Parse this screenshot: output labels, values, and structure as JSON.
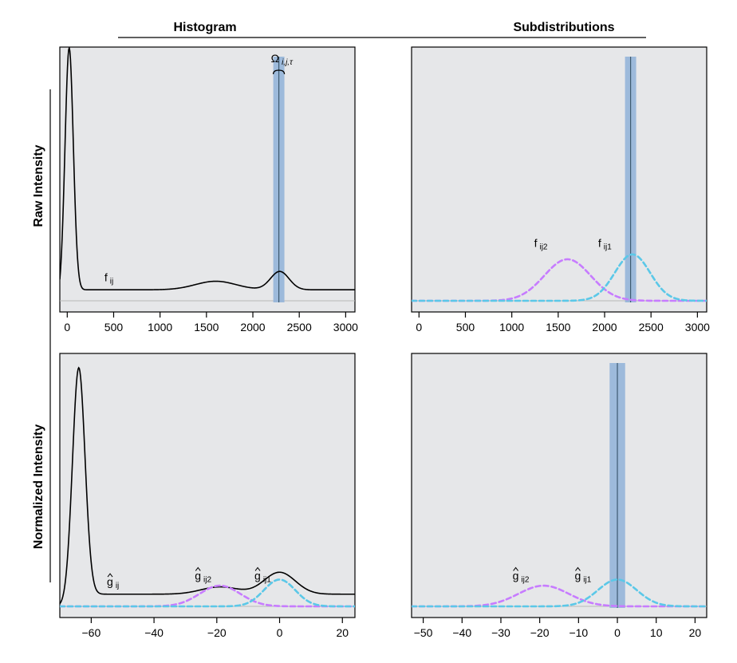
{
  "titles": {
    "col_left": "Histogram",
    "col_right": "Subdistributions",
    "row_top": "Raw Intensity",
    "row_bottom": "Normalized Intensity"
  },
  "colors": {
    "panel_bg": "#e6e7e9",
    "black_curve": "#000000",
    "purple_dash": "#c77cff",
    "cyan_dash": "#5bc8e8",
    "window_band": "#8fb1d8",
    "window_line": "#3e5a70"
  },
  "chart_data": [
    {
      "id": "raw-histogram",
      "type": "line",
      "xlim": [
        -80,
        3100
      ],
      "ylim": [
        0,
        1
      ],
      "x_ticks": [
        0,
        500,
        1000,
        1500,
        2000,
        2500,
        3000
      ],
      "x_tick_labels": [
        "0",
        "500",
        "1000",
        "1500",
        "2000",
        "2500",
        "3000"
      ],
      "window": {
        "from": 2220,
        "to": 2340,
        "center": 2280
      },
      "window_label": {
        "main": "Ω",
        "sub": "i,j,τ"
      },
      "labels": [
        {
          "main": "f",
          "sub": "ij",
          "x": 400,
          "y": 0.08,
          "hat": false
        }
      ],
      "series": [
        {
          "style": "solid",
          "color": "#000000",
          "components": [
            {
              "mu": 20,
              "sd": 45,
              "amp": 1.0
            },
            {
              "mu": 1600,
              "sd": 220,
              "amp": 0.035
            },
            {
              "mu": 2290,
              "sd": 100,
              "amp": 0.075
            }
          ],
          "base": {
            "level": 0.045,
            "from": 60,
            "to": 3200,
            "decay_sd": 60
          }
        }
      ]
    },
    {
      "id": "raw-subdistributions",
      "type": "line",
      "xlim": [
        -80,
        3100
      ],
      "ylim": [
        0,
        1
      ],
      "x_ticks": [
        0,
        500,
        1000,
        1500,
        2000,
        2500,
        3000
      ],
      "x_tick_labels": [
        "0",
        "500",
        "1000",
        "1500",
        "2000",
        "2500",
        "3000"
      ],
      "window": {
        "from": 2220,
        "to": 2340,
        "center": 2280
      },
      "labels": [
        {
          "main": "f",
          "sub": "ij2",
          "x": 1240,
          "y": 0.22,
          "hat": false
        },
        {
          "main": "f",
          "sub": "ij1",
          "x": 1930,
          "y": 0.22,
          "hat": false
        }
      ],
      "series": [
        {
          "style": "dashed",
          "color": "#c77cff",
          "components": [
            {
              "mu": 1600,
              "sd": 250,
              "amp": 0.17
            }
          ]
        },
        {
          "style": "dashed",
          "color": "#5bc8e8",
          "components": [
            {
              "mu": 2300,
              "sd": 190,
              "amp": 0.19
            }
          ]
        }
      ]
    },
    {
      "id": "normalized-histogram",
      "type": "line",
      "xlim": [
        -70,
        24
      ],
      "ylim": [
        0,
        1
      ],
      "x_ticks": [
        -60,
        -40,
        -20,
        0,
        20
      ],
      "x_tick_labels": [
        "−60",
        "−40",
        "−20",
        "0",
        "20"
      ],
      "labels": [
        {
          "main": "g",
          "sub": "ij",
          "x": -55,
          "y": 0.085,
          "hat": true
        },
        {
          "main": "g",
          "sub": "ij2",
          "x": -27,
          "y": 0.11,
          "hat": true
        },
        {
          "main": "g",
          "sub": "ij1",
          "x": -8,
          "y": 0.11,
          "hat": true
        }
      ],
      "series": [
        {
          "style": "solid",
          "color": "#000000",
          "components": [
            {
              "mu": -64,
              "sd": 2.0,
              "amp": 0.96
            },
            {
              "mu": -19,
              "sd": 6,
              "amp": 0.03
            },
            {
              "mu": 0,
              "sd": 5,
              "amp": 0.09
            }
          ],
          "base": {
            "level": 0.05,
            "from": -60,
            "to": 30,
            "decay_sd": 3
          }
        },
        {
          "style": "dashed",
          "color": "#c77cff",
          "components": [
            {
              "mu": -19,
              "sd": 6.5,
              "amp": 0.085
            }
          ]
        },
        {
          "style": "dashed",
          "color": "#5bc8e8",
          "components": [
            {
              "mu": 0,
              "sd": 5,
              "amp": 0.11
            }
          ]
        }
      ]
    },
    {
      "id": "normalized-subdistributions",
      "type": "line",
      "xlim": [
        -53,
        23
      ],
      "ylim": [
        0,
        1
      ],
      "x_ticks": [
        -50,
        -40,
        -30,
        -20,
        -10,
        0,
        10,
        20
      ],
      "x_tick_labels": [
        "−50",
        "−40",
        "−30",
        "−20",
        "−10",
        "0",
        "10",
        "20"
      ],
      "window": {
        "from": -2,
        "to": 2,
        "center": 0
      },
      "labels": [
        {
          "main": "g",
          "sub": "ij2",
          "x": -27,
          "y": 0.11,
          "hat": true
        },
        {
          "main": "g",
          "sub": "ij1",
          "x": -11,
          "y": 0.11,
          "hat": true
        }
      ],
      "series": [
        {
          "style": "dashed",
          "color": "#c77cff",
          "components": [
            {
              "mu": -19,
              "sd": 6.5,
              "amp": 0.085
            }
          ]
        },
        {
          "style": "dashed",
          "color": "#5bc8e8",
          "components": [
            {
              "mu": 0,
              "sd": 5,
              "amp": 0.11
            }
          ]
        }
      ]
    }
  ]
}
